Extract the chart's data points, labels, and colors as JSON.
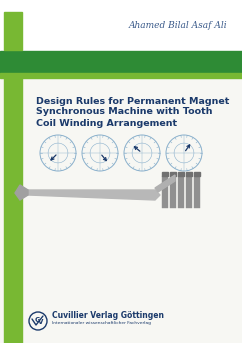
{
  "background_color": "#f7f7f3",
  "top_white_bg": "#ffffff",
  "green_bar_light": "#78b833",
  "green_bar_dark": "#2e8b35",
  "author": "Ahamed Bilal Asaf Ali",
  "title_line1": "Design Rules for Permanent Magnet",
  "title_line2": "Synchronous Machine with Tooth",
  "title_line3": "Coil Winding Arrangement",
  "title_color": "#1b3a6b",
  "author_color": "#3a5a8a",
  "publisher_name": "Cuvillier Verlag Göttingen",
  "publisher_sub": "Internationaler wissenschaftlicher Fachverlag",
  "publisher_color": "#1b3a6b",
  "left_bar_color": "#78b833",
  "fig_width": 2.42,
  "fig_height": 3.43,
  "phasor_angles_deg": [
    225,
    310,
    140,
    55
  ],
  "circle_color": "#8ab0cc",
  "phasor_color": "#1b3a6b"
}
